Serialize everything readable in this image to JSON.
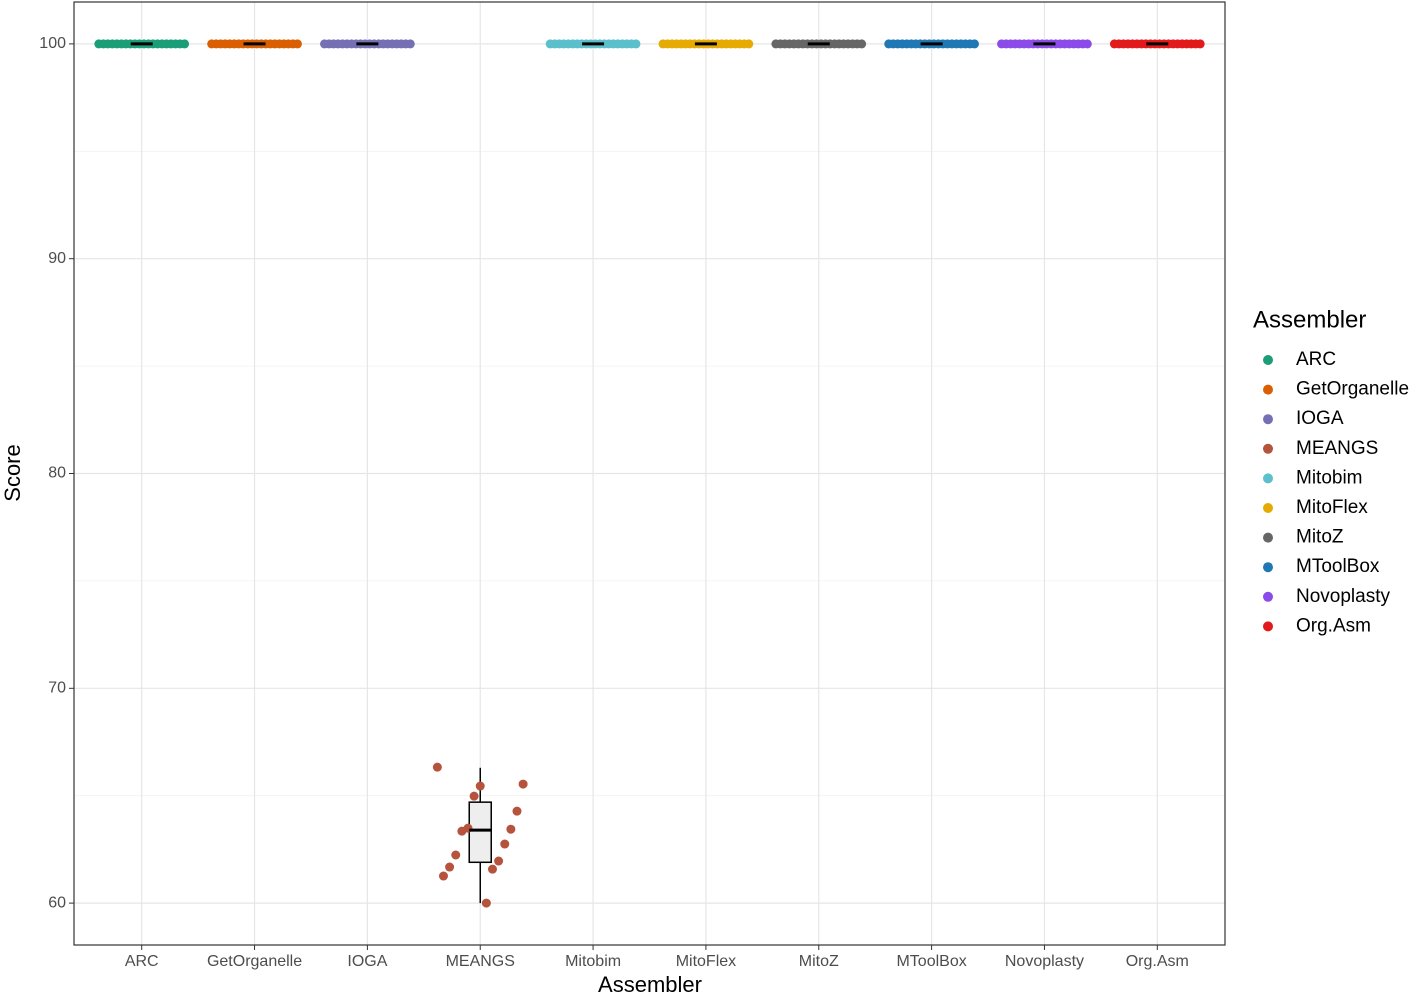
{
  "chart_data": {
    "type": "box_jitter",
    "x_label": "Assembler",
    "y_label": "Score",
    "legend_title": "Assembler",
    "legend_position": "right",
    "grid": true,
    "categories": [
      "ARC",
      "GetOrganelle",
      "IOGA",
      "MEANGS",
      "Mitobim",
      "MitoFlex",
      "MitoZ",
      "MToolBox",
      "Novoplasty",
      "Org.Asm"
    ],
    "ylim": [
      58.05,
      101.95
    ],
    "yticks": [
      60,
      70,
      80,
      90,
      100
    ],
    "yminor_ticks": [
      65,
      75,
      85,
      95
    ],
    "series": [
      {
        "name": "ARC",
        "color": "#1b9e77",
        "values": [
          100,
          100,
          100,
          100,
          100,
          100,
          100,
          100,
          100,
          100,
          100,
          100,
          100,
          100,
          100,
          100,
          100,
          100,
          100,
          100
        ]
      },
      {
        "name": "GetOrganelle",
        "color": "#d95f02",
        "values": [
          100,
          100,
          100,
          100,
          100,
          100,
          100,
          100,
          100,
          100,
          100,
          100,
          100,
          100,
          100,
          100,
          100,
          100,
          100,
          100
        ]
      },
      {
        "name": "IOGA",
        "color": "#7570b3",
        "values": [
          100,
          100,
          100,
          100,
          100,
          100,
          100,
          100,
          100,
          100,
          100,
          100,
          100,
          100,
          100,
          100,
          100,
          100,
          100,
          100
        ]
      },
      {
        "name": "MEANGS",
        "color": "#b5533c",
        "values": [
          66.33,
          65.45,
          65.54,
          64.98,
          64.28,
          63.49,
          63.44,
          63.35,
          62.75,
          62.24,
          61.96,
          61.68,
          61.58,
          61.26,
          60.0
        ]
      },
      {
        "name": "Mitobim",
        "color": "#5bc0cc",
        "values": [
          100,
          100,
          100,
          100,
          100,
          100,
          100,
          100,
          100,
          100,
          100,
          100,
          100,
          100,
          100,
          100,
          100,
          100,
          100,
          100
        ]
      },
      {
        "name": "MitoFlex",
        "color": "#e6ab02",
        "values": [
          100,
          100,
          100,
          100,
          100,
          100,
          100,
          100,
          100,
          100,
          100,
          100,
          100,
          100,
          100,
          100,
          100,
          100,
          100,
          100
        ]
      },
      {
        "name": "MitoZ",
        "color": "#666666",
        "values": [
          100,
          100,
          100,
          100,
          100,
          100,
          100,
          100,
          100,
          100,
          100,
          100,
          100,
          100,
          100,
          100,
          100,
          100,
          100,
          100
        ]
      },
      {
        "name": "MToolBox",
        "color": "#1f78b4",
        "values": [
          100,
          100,
          100,
          100,
          100,
          100,
          100,
          100,
          100,
          100,
          100,
          100,
          100,
          100,
          100,
          100,
          100,
          100,
          100,
          100
        ]
      },
      {
        "name": "Novoplasty",
        "color": "#8b4be8",
        "values": [
          100,
          100,
          100,
          100,
          100,
          100,
          100,
          100,
          100,
          100,
          100,
          100,
          100,
          100,
          100,
          100,
          100,
          100,
          100,
          100
        ]
      },
      {
        "name": "Org.Asm",
        "color": "#e31a1c",
        "values": [
          100,
          100,
          100,
          100,
          100,
          100,
          100,
          100,
          100,
          100,
          100,
          100,
          100,
          100,
          100,
          100,
          100,
          100,
          100,
          100
        ]
      }
    ],
    "boxes": [
      {
        "low": 100,
        "q1": 100,
        "median": 100,
        "q3": 100,
        "high": 100
      },
      {
        "low": 100,
        "q1": 100,
        "median": 100,
        "q3": 100,
        "high": 100
      },
      {
        "low": 100,
        "q1": 100,
        "median": 100,
        "q3": 100,
        "high": 100
      },
      {
        "low": 60.0,
        "q1": 61.9,
        "median": 63.4,
        "q3": 64.7,
        "high": 66.3
      },
      {
        "low": 100,
        "q1": 100,
        "median": 100,
        "q3": 100,
        "high": 100
      },
      {
        "low": 100,
        "q1": 100,
        "median": 100,
        "q3": 100,
        "high": 100
      },
      {
        "low": 100,
        "q1": 100,
        "median": 100,
        "q3": 100,
        "high": 100
      },
      {
        "low": 100,
        "q1": 100,
        "median": 100,
        "q3": 100,
        "high": 100
      },
      {
        "low": 100,
        "q1": 100,
        "median": 100,
        "q3": 100,
        "high": 100
      },
      {
        "low": 100,
        "q1": 100,
        "median": 100,
        "q3": 100,
        "high": 100
      }
    ]
  }
}
